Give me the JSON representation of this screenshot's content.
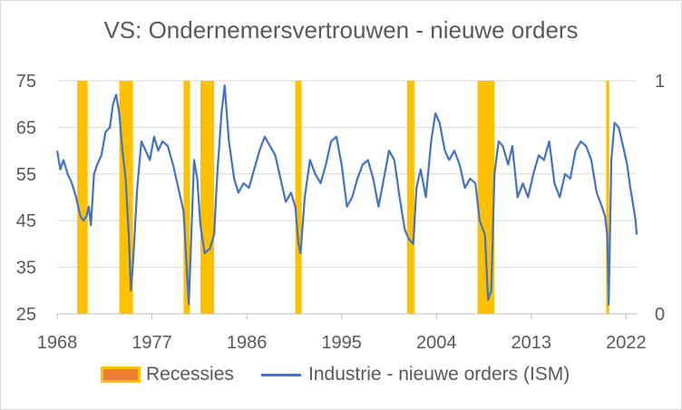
{
  "chart_data": {
    "type": "line",
    "title": "VS: Ondernemersvertrouwen - nieuwe orders",
    "y_left": {
      "min": 25,
      "max": 75,
      "ticks": [
        "75",
        "65",
        "55",
        "45",
        "35",
        "25"
      ]
    },
    "y_right": {
      "min": 0,
      "max": 1,
      "ticks": [
        "1",
        "0"
      ]
    },
    "x_axis": {
      "min": 1968,
      "max": 2023,
      "ticks": [
        "1968",
        "1977",
        "1986",
        "1995",
        "2004",
        "2013",
        "2022"
      ]
    },
    "recessions": [
      [
        1969.9,
        1970.9
      ],
      [
        1973.9,
        1975.2
      ],
      [
        1980.0,
        1980.6
      ],
      [
        1981.6,
        1982.9
      ],
      [
        1990.6,
        1991.2
      ],
      [
        2001.2,
        2001.9
      ],
      [
        2007.9,
        2009.5
      ],
      [
        2020.1,
        2020.4
      ]
    ],
    "series": [
      {
        "name": "Industrie - nieuwe orders (ISM)",
        "color": "#4472c4",
        "points": [
          [
            1968.0,
            60
          ],
          [
            1968.3,
            56
          ],
          [
            1968.6,
            58
          ],
          [
            1969.0,
            55
          ],
          [
            1969.4,
            53
          ],
          [
            1969.8,
            50
          ],
          [
            1970.2,
            46
          ],
          [
            1970.5,
            45
          ],
          [
            1970.8,
            46
          ],
          [
            1971.0,
            48
          ],
          [
            1971.2,
            44
          ],
          [
            1971.5,
            55
          ],
          [
            1971.8,
            57
          ],
          [
            1972.2,
            59
          ],
          [
            1972.6,
            64
          ],
          [
            1973.0,
            65
          ],
          [
            1973.3,
            70
          ],
          [
            1973.6,
            72
          ],
          [
            1973.9,
            68
          ],
          [
            1974.2,
            60
          ],
          [
            1974.5,
            54
          ],
          [
            1974.8,
            42
          ],
          [
            1975.0,
            30
          ],
          [
            1975.2,
            36
          ],
          [
            1975.6,
            52
          ],
          [
            1976.0,
            62
          ],
          [
            1976.4,
            60
          ],
          [
            1976.8,
            58
          ],
          [
            1977.2,
            63
          ],
          [
            1977.6,
            60
          ],
          [
            1978.0,
            62
          ],
          [
            1978.5,
            61
          ],
          [
            1979.0,
            57
          ],
          [
            1979.5,
            52
          ],
          [
            1980.0,
            47
          ],
          [
            1980.3,
            35
          ],
          [
            1980.5,
            27
          ],
          [
            1980.7,
            40
          ],
          [
            1981.0,
            58
          ],
          [
            1981.3,
            54
          ],
          [
            1981.6,
            44
          ],
          [
            1982.0,
            38
          ],
          [
            1982.5,
            39
          ],
          [
            1982.9,
            42
          ],
          [
            1983.2,
            55
          ],
          [
            1983.6,
            68
          ],
          [
            1983.9,
            74
          ],
          [
            1984.3,
            62
          ],
          [
            1984.8,
            54
          ],
          [
            1985.2,
            51
          ],
          [
            1985.7,
            53
          ],
          [
            1986.2,
            52
          ],
          [
            1986.7,
            56
          ],
          [
            1987.2,
            60
          ],
          [
            1987.7,
            63
          ],
          [
            1988.2,
            61
          ],
          [
            1988.7,
            59
          ],
          [
            1989.2,
            54
          ],
          [
            1989.7,
            49
          ],
          [
            1990.2,
            51
          ],
          [
            1990.6,
            48
          ],
          [
            1990.9,
            40
          ],
          [
            1991.1,
            38
          ],
          [
            1991.5,
            50
          ],
          [
            1992.0,
            58
          ],
          [
            1992.5,
            55
          ],
          [
            1993.0,
            53
          ],
          [
            1993.5,
            57
          ],
          [
            1994.0,
            62
          ],
          [
            1994.5,
            63
          ],
          [
            1995.0,
            57
          ],
          [
            1995.5,
            48
          ],
          [
            1996.0,
            50
          ],
          [
            1996.5,
            54
          ],
          [
            1997.0,
            57
          ],
          [
            1997.5,
            58
          ],
          [
            1998.0,
            54
          ],
          [
            1998.5,
            48
          ],
          [
            1999.0,
            54
          ],
          [
            1999.5,
            60
          ],
          [
            2000.0,
            58
          ],
          [
            2000.5,
            50
          ],
          [
            2001.0,
            43
          ],
          [
            2001.4,
            41
          ],
          [
            2001.8,
            40
          ],
          [
            2002.1,
            52
          ],
          [
            2002.5,
            56
          ],
          [
            2003.0,
            50
          ],
          [
            2003.5,
            62
          ],
          [
            2003.9,
            68
          ],
          [
            2004.3,
            66
          ],
          [
            2004.8,
            60
          ],
          [
            2005.2,
            58
          ],
          [
            2005.7,
            60
          ],
          [
            2006.2,
            57
          ],
          [
            2006.7,
            52
          ],
          [
            2007.2,
            54
          ],
          [
            2007.7,
            53
          ],
          [
            2008.1,
            45
          ],
          [
            2008.6,
            42
          ],
          [
            2008.9,
            28
          ],
          [
            2009.2,
            30
          ],
          [
            2009.5,
            55
          ],
          [
            2009.9,
            62
          ],
          [
            2010.3,
            61
          ],
          [
            2010.8,
            57
          ],
          [
            2011.2,
            61
          ],
          [
            2011.7,
            50
          ],
          [
            2012.2,
            53
          ],
          [
            2012.7,
            50
          ],
          [
            2013.2,
            55
          ],
          [
            2013.7,
            59
          ],
          [
            2014.2,
            58
          ],
          [
            2014.7,
            62
          ],
          [
            2015.2,
            53
          ],
          [
            2015.7,
            50
          ],
          [
            2016.2,
            55
          ],
          [
            2016.7,
            54
          ],
          [
            2017.2,
            60
          ],
          [
            2017.7,
            62
          ],
          [
            2018.2,
            61
          ],
          [
            2018.7,
            58
          ],
          [
            2019.2,
            51
          ],
          [
            2019.7,
            48
          ],
          [
            2020.0,
            46
          ],
          [
            2020.2,
            42
          ],
          [
            2020.35,
            27
          ],
          [
            2020.6,
            58
          ],
          [
            2020.9,
            66
          ],
          [
            2021.3,
            65
          ],
          [
            2021.8,
            60
          ],
          [
            2022.1,
            57
          ],
          [
            2022.4,
            52
          ],
          [
            2022.7,
            48
          ],
          [
            2022.9,
            45
          ],
          [
            2023.0,
            42
          ]
        ]
      }
    ],
    "legend": {
      "recession_label": "Recessies",
      "line_label": "Industrie - nieuwe orders (ISM)"
    },
    "colors": {
      "recession_fill": "#ffc000",
      "recession_legend_fill": "#ed7d31",
      "line": "#4472c4",
      "grid": "#d9d9d9"
    }
  }
}
